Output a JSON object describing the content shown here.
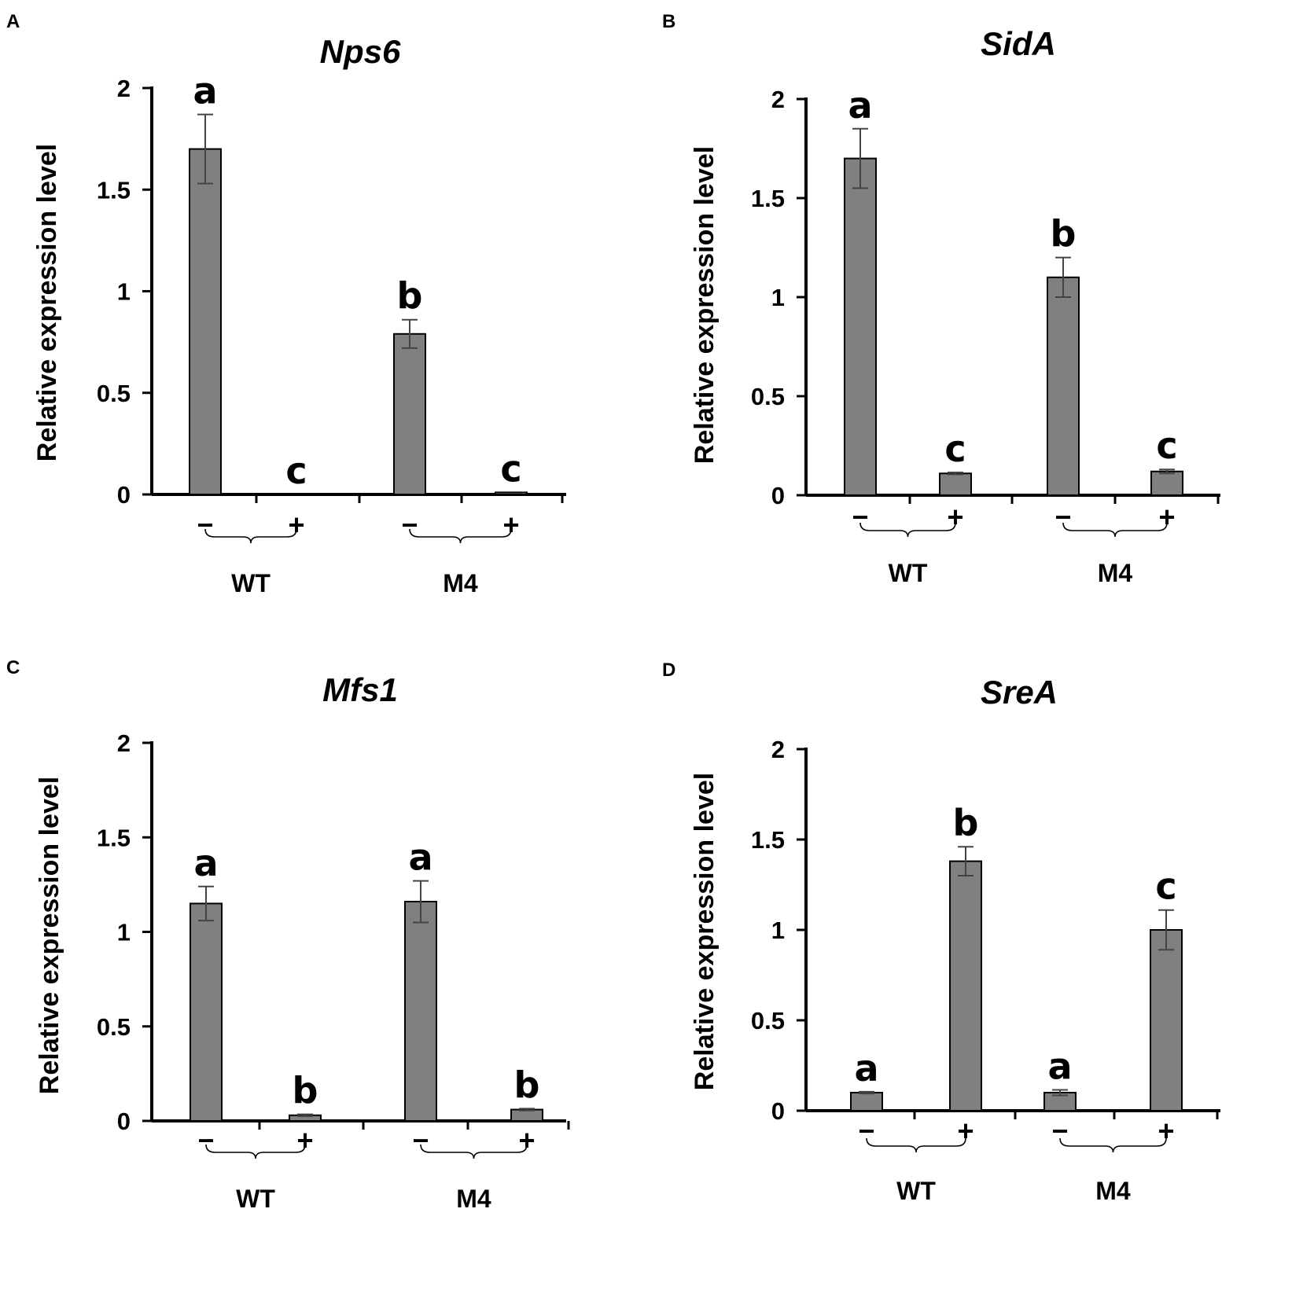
{
  "chart_data": [
    {
      "panel": "A",
      "type": "bar",
      "title": "Nps6",
      "xlabel": "",
      "ylabel": "Relative expression level",
      "ylim": [
        0,
        2
      ],
      "yticks": [
        "0",
        "0.5",
        "1",
        "1.5",
        "2"
      ],
      "conditions": [
        "−",
        "+",
        "−",
        "+"
      ],
      "groups": [
        "WT",
        "M4"
      ],
      "values": [
        1.7,
        0.0,
        0.79,
        0.01
      ],
      "errors": [
        0.17,
        0.0,
        0.07,
        0.0
      ],
      "letters": [
        "a",
        "c",
        "b",
        "c"
      ]
    },
    {
      "panel": "B",
      "type": "bar",
      "title": "SidA",
      "xlabel": "",
      "ylabel": "Relative expression level",
      "ylim": [
        0,
        2
      ],
      "yticks": [
        "0",
        "0.5",
        "1",
        "1.5",
        "2"
      ],
      "conditions": [
        "−",
        "+",
        "−",
        "+"
      ],
      "groups": [
        "WT",
        "M4"
      ],
      "values": [
        1.7,
        0.11,
        1.1,
        0.12
      ],
      "errors": [
        0.15,
        0.005,
        0.1,
        0.01
      ],
      "letters": [
        "a",
        "c",
        "b",
        "c"
      ]
    },
    {
      "panel": "C",
      "type": "bar",
      "title": "Mfs1",
      "xlabel": "",
      "ylabel": "Relative expression level",
      "ylim": [
        0,
        2
      ],
      "yticks": [
        "0",
        "0.5",
        "1",
        "1.5",
        "2"
      ],
      "conditions": [
        "−",
        "+",
        "−",
        "+"
      ],
      "groups": [
        "WT",
        "M4"
      ],
      "values": [
        1.15,
        0.03,
        1.16,
        0.06
      ],
      "errors": [
        0.09,
        0.005,
        0.11,
        0.005
      ],
      "letters": [
        "a",
        "b",
        "a",
        "b"
      ]
    },
    {
      "panel": "D",
      "type": "bar",
      "title": "SreA",
      "xlabel": "",
      "ylabel": "Relative expression level",
      "ylim": [
        0,
        2
      ],
      "yticks": [
        "0",
        "0.5",
        "1",
        "1.5",
        "2"
      ],
      "conditions": [
        "−",
        "+",
        "−",
        "+"
      ],
      "groups": [
        "WT",
        "M4"
      ],
      "values": [
        0.1,
        1.38,
        0.1,
        1.0
      ],
      "errors": [
        0.005,
        0.08,
        0.015,
        0.11
      ],
      "letters": [
        "a",
        "b",
        "a",
        "c"
      ]
    }
  ],
  "colors": {
    "bar_fill": "#808080",
    "bar_edge": "#000000",
    "error_bar": "#444444"
  }
}
